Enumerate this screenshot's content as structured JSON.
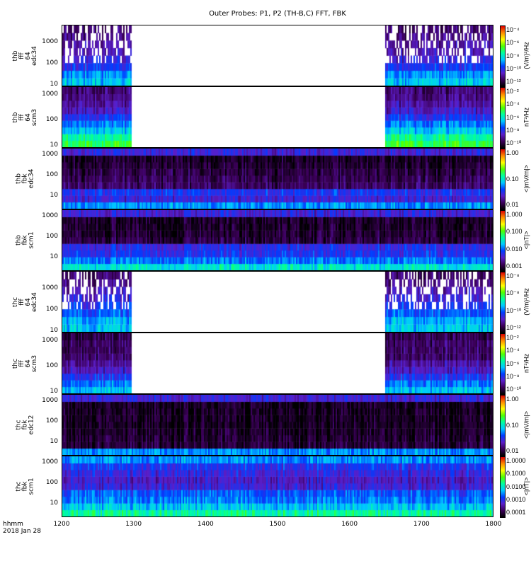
{
  "chart_data": {
    "type": "heatmap",
    "title": "Outer Probes: P1, P2 (TH-B,C) FFT, FBK",
    "x_ticks": [
      "1200",
      "1300",
      "1400",
      "1500",
      "1600",
      "1700",
      "1800"
    ],
    "xlim": [
      1200,
      1800
    ],
    "x_label": [
      "hhmm",
      "2018 Jan 28"
    ],
    "data_gap": [
      1295,
      1650
    ],
    "panels": [
      {
        "label": [
          "thb",
          "fff",
          "64",
          "edc34"
        ],
        "yticks": [
          "10",
          "100",
          "1000"
        ],
        "ylim": [
          8,
          6000
        ],
        "gap": true,
        "profile": [
          0.45,
          0.4,
          0.3,
          0.25,
          0.2,
          0.18,
          0.15,
          0.12
        ],
        "cbar": [
          "10⁻⁴",
          "10⁻⁶",
          "10⁻⁸",
          "10⁻¹⁰",
          "10⁻¹²"
        ],
        "cunit": "(V/m)²/Hz",
        "sparse": true
      },
      {
        "label": [
          "thb",
          "fff",
          "64",
          "scm3"
        ],
        "yticks": [
          "10",
          "100",
          "1000"
        ],
        "ylim": [
          8,
          2000
        ],
        "gap": true,
        "profile": [
          0.62,
          0.55,
          0.45,
          0.38,
          0.3,
          0.22,
          0.18,
          0.15,
          0.13
        ],
        "cbar": [
          "10⁻²",
          "10⁻⁴",
          "10⁻⁶",
          "10⁻⁸",
          "10⁻¹⁰"
        ],
        "cunit": "nT²/Hz",
        "sparse": false
      },
      {
        "label": [
          "thb",
          "fbk",
          "edc34"
        ],
        "yticks": [
          "10",
          "100",
          "1000"
        ],
        "ylim": [
          2,
          2000
        ],
        "gap": false,
        "profile": [
          0.4,
          0.25,
          0.3,
          0.12,
          0.1,
          0.08,
          0.06,
          0.05,
          0.25
        ],
        "cbar": [
          "1.00",
          "0.10",
          "0.01"
        ],
        "cunit": "<|mV/m|>",
        "sparse": false
      },
      {
        "label": [
          "thb",
          "fbk",
          "scm1"
        ],
        "yticks": [
          "10",
          "100",
          "1000"
        ],
        "ylim": [
          2,
          2000
        ],
        "gap": false,
        "profile": [
          0.5,
          0.38,
          0.3,
          0.28,
          0.08,
          0.06,
          0.05,
          0.05,
          0.25
        ],
        "cbar": [
          "1.000",
          "0.100",
          "0.010",
          "0.001"
        ],
        "cunit": "<|nT|>",
        "sparse": false
      },
      {
        "label": [
          "thc",
          "fff",
          "64",
          "edc34"
        ],
        "yticks": [
          "10",
          "100",
          "1000"
        ],
        "ylim": [
          8,
          6000
        ],
        "gap": true,
        "profile": [
          0.45,
          0.42,
          0.35,
          0.3,
          0.25,
          0.2,
          0.15,
          0.12
        ],
        "cbar": [
          "10⁻⁸",
          "10⁻⁸",
          "10⁻¹⁰",
          "10⁻¹²"
        ],
        "cunit": "(V/m)²/Hz",
        "sparse": true
      },
      {
        "label": [
          "thc",
          "fff",
          "64",
          "scm3"
        ],
        "yticks": [
          "10",
          "100",
          "1000"
        ],
        "ylim": [
          8,
          2000
        ],
        "gap": true,
        "profile": [
          0.45,
          0.38,
          0.3,
          0.22,
          0.18,
          0.13,
          0.12,
          0.12,
          0.1
        ],
        "cbar": [
          "10⁻²",
          "10⁻⁴",
          "10⁻⁶",
          "10⁻⁸",
          "10⁻¹⁰"
        ],
        "cunit": "nT²/Hz",
        "sparse": false
      },
      {
        "label": [
          "thc",
          "fbk",
          "edc12"
        ],
        "yticks": [
          "10",
          "100",
          "1000"
        ],
        "ylim": [
          2,
          2000
        ],
        "gap": false,
        "profile": [
          0.4,
          0.07,
          0.06,
          0.05,
          0.04,
          0.04,
          0.04,
          0.04,
          0.25
        ],
        "cbar": [
          "1.00",
          "0.10",
          "0.01"
        ],
        "cunit": "<|mV/m|>",
        "sparse": false
      },
      {
        "label": [
          "thc",
          "fbk",
          "scm1"
        ],
        "yticks": [
          "10",
          "100",
          "1000"
        ],
        "ylim": [
          2,
          2000
        ],
        "gap": false,
        "profile": [
          0.55,
          0.45,
          0.38,
          0.35,
          0.25,
          0.22,
          0.26,
          0.3,
          0.4
        ],
        "cbar": [
          "1.0000",
          "0.1000",
          "0.0100",
          "0.0010",
          "0.0001"
        ],
        "cunit": "<|nT|>",
        "sparse": false
      }
    ]
  }
}
